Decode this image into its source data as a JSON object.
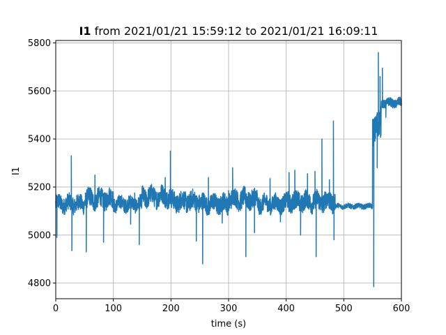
{
  "chart_data": {
    "type": "line",
    "title_bold": "I1",
    "title_rest": " from 2021/01/21 15:59:12 to 2021/01/21 16:09:11",
    "xlabel": "time (s)",
    "ylabel": "I1",
    "xlim": [
      0,
      600
    ],
    "ylim": [
      4735,
      5810
    ],
    "xticks": [
      0,
      100,
      200,
      300,
      400,
      500,
      600
    ],
    "yticks": [
      4800,
      5000,
      5200,
      5400,
      5600,
      5800
    ],
    "grid": true,
    "line_color": "#1f77b4",
    "segments": [
      {
        "x": [
          0,
          50
        ],
        "base": 5130,
        "noise": 35
      },
      {
        "x": [
          50,
          100
        ],
        "base": 5150,
        "noise": 40
      },
      {
        "x": [
          100,
          150
        ],
        "base": 5130,
        "noise": 30
      },
      {
        "x": [
          150,
          200
        ],
        "base": 5160,
        "noise": 40
      },
      {
        "x": [
          200,
          250
        ],
        "base": 5140,
        "noise": 40
      },
      {
        "x": [
          250,
          300
        ],
        "base": 5130,
        "noise": 38
      },
      {
        "x": [
          300,
          350
        ],
        "base": 5150,
        "noise": 40
      },
      {
        "x": [
          350,
          400
        ],
        "base": 5130,
        "noise": 35
      },
      {
        "x": [
          400,
          485
        ],
        "base": 5140,
        "noise": 40
      },
      {
        "x": [
          485,
          550
        ],
        "base": 5120,
        "noise": 10
      },
      {
        "x": [
          550,
          565
        ],
        "base": 5450,
        "noise": 60
      },
      {
        "x": [
          565,
          600
        ],
        "base": 5550,
        "noise": 18
      }
    ],
    "spikes": [
      {
        "x": 2,
        "y": 4990
      },
      {
        "x": 27,
        "y": 5330
      },
      {
        "x": 28,
        "y": 4935
      },
      {
        "x": 53,
        "y": 4930
      },
      {
        "x": 68,
        "y": 5250
      },
      {
        "x": 83,
        "y": 4970
      },
      {
        "x": 130,
        "y": 5045
      },
      {
        "x": 137,
        "y": 5175
      },
      {
        "x": 145,
        "y": 4960
      },
      {
        "x": 190,
        "y": 5240
      },
      {
        "x": 199,
        "y": 5350
      },
      {
        "x": 225,
        "y": 5180
      },
      {
        "x": 244,
        "y": 4975
      },
      {
        "x": 255,
        "y": 4880
      },
      {
        "x": 265,
        "y": 5240
      },
      {
        "x": 289,
        "y": 5050
      },
      {
        "x": 300,
        "y": 5185
      },
      {
        "x": 307,
        "y": 5280
      },
      {
        "x": 330,
        "y": 4910
      },
      {
        "x": 345,
        "y": 5010
      },
      {
        "x": 372,
        "y": 5235
      },
      {
        "x": 390,
        "y": 5055
      },
      {
        "x": 405,
        "y": 5260
      },
      {
        "x": 415,
        "y": 5270
      },
      {
        "x": 425,
        "y": 5000
      },
      {
        "x": 437,
        "y": 5255
      },
      {
        "x": 450,
        "y": 5265
      },
      {
        "x": 452,
        "y": 4910
      },
      {
        "x": 462,
        "y": 5400
      },
      {
        "x": 475,
        "y": 5230
      },
      {
        "x": 482,
        "y": 5475
      },
      {
        "x": 483,
        "y": 4980
      },
      {
        "x": 552,
        "y": 4785
      },
      {
        "x": 554,
        "y": 5420
      },
      {
        "x": 558,
        "y": 5280
      },
      {
        "x": 560,
        "y": 5760
      },
      {
        "x": 563,
        "y": 5660
      },
      {
        "x": 567,
        "y": 5695
      },
      {
        "x": 573,
        "y": 5490
      }
    ]
  }
}
